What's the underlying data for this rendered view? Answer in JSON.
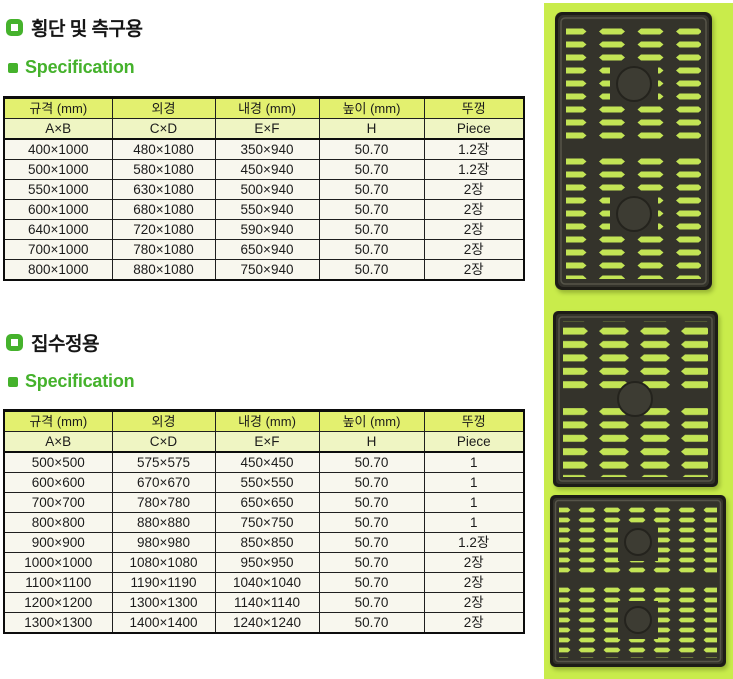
{
  "colors": {
    "accent_green": "#45b22c",
    "table_header_bg": "#e3f06f",
    "table_subheader_bg": "#eff5c3",
    "table_row_bg": "#f8f7ee",
    "photo_panel_bg": "#c9ec4b",
    "grate_body": "#34332b",
    "grate_slot": "#c3e455"
  },
  "sections": [
    {
      "id": "crossing-gutter",
      "title": "횡단 및 측구용",
      "spec_label": "Specification",
      "table": {
        "header_row1": [
          "규격 (mm)",
          "외경",
          "내경 (mm)",
          "높이 (mm)",
          "뚜껑"
        ],
        "header_row2": [
          "A×B",
          "C×D",
          "E×F",
          "H",
          "Piece"
        ],
        "rows": [
          [
            "400×1000",
            "480×1080",
            "350×940",
            "50.70",
            "1.2장"
          ],
          [
            "500×1000",
            "580×1080",
            "450×940",
            "50.70",
            "1.2장"
          ],
          [
            "550×1000",
            "630×1080",
            "500×940",
            "50.70",
            "2장"
          ],
          [
            "600×1000",
            "680×1080",
            "550×940",
            "50.70",
            "2장"
          ],
          [
            "640×1000",
            "720×1080",
            "590×940",
            "50.70",
            "2장"
          ],
          [
            "700×1000",
            "780×1080",
            "650×940",
            "50.70",
            "2장"
          ],
          [
            "800×1000",
            "880×1080",
            "750×940",
            "50.70",
            "2장"
          ]
        ]
      }
    },
    {
      "id": "catch-basin",
      "title": "집수정용",
      "spec_label": "Specification",
      "table": {
        "header_row1": [
          "규격 (mm)",
          "외경",
          "내경 (mm)",
          "높이 (mm)",
          "뚜껑"
        ],
        "header_row2": [
          "A×B",
          "C×D",
          "E×F",
          "H",
          "Piece"
        ],
        "rows": [
          [
            "500×500",
            "575×575",
            "450×450",
            "50.70",
            "1"
          ],
          [
            "600×600",
            "670×670",
            "550×550",
            "50.70",
            "1"
          ],
          [
            "700×700",
            "780×780",
            "650×650",
            "50.70",
            "1"
          ],
          [
            "800×800",
            "880×880",
            "750×750",
            "50.70",
            "1"
          ],
          [
            "900×900",
            "980×980",
            "850×850",
            "50.70",
            "1.2장"
          ],
          [
            "1000×1000",
            "1080×1080",
            "950×950",
            "50.70",
            "2장"
          ],
          [
            "1100×1100",
            "1190×1190",
            "1040×1040",
            "50.70",
            "2장"
          ],
          [
            "1200×1200",
            "1300×1300",
            "1140×1140",
            "50.70",
            "2장"
          ],
          [
            "1300×1300",
            "1400×1400",
            "1240×1240",
            "50.70",
            "2장"
          ]
        ]
      }
    }
  ],
  "gallery": {
    "photos": [
      {
        "name": "rect-grate-photo"
      },
      {
        "name": "square-grate-photo"
      },
      {
        "name": "large-square-grate-photo"
      }
    ]
  }
}
